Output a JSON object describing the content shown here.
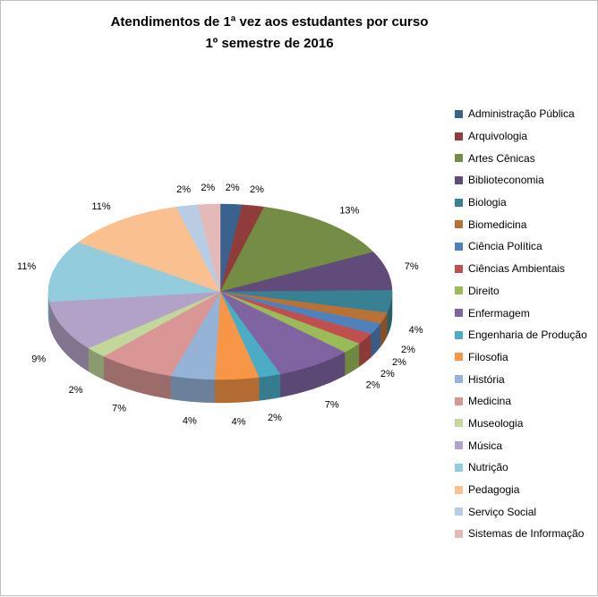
{
  "title": {
    "line1": "Atendimentos de 1ª vez aos estudantes por curso",
    "line2": "1º semestre de 2016"
  },
  "chart_data": {
    "type": "pie",
    "style": "3d-pie",
    "title": "Atendimentos de 1ª vez aos estudantes por curso",
    "subtitle": "1º semestre de 2016",
    "legend_position": "right",
    "label_format": "percent",
    "slices": [
      {
        "label": "Administração Pública",
        "value": 2,
        "display": "2%",
        "color": "#3B618E"
      },
      {
        "label": "Arquivologia",
        "value": 2,
        "display": "2%",
        "color": "#903C3A"
      },
      {
        "label": "Artes Cênicas",
        "value": 13,
        "display": "13%",
        "color": "#748C43"
      },
      {
        "label": "Biblioteconomia",
        "value": 7,
        "display": "7%",
        "color": "#604B7A"
      },
      {
        "label": "Biologia",
        "value": 4,
        "display": "4%",
        "color": "#388195"
      },
      {
        "label": "Biomedicina",
        "value": 2,
        "display": "2%",
        "color": "#B97135"
      },
      {
        "label": "Ciência Política",
        "value": 2,
        "display": "2%",
        "color": "#4F81BD"
      },
      {
        "label": "Ciências Ambientais",
        "value": 2,
        "display": "2%",
        "color": "#C0504D"
      },
      {
        "label": "Direito",
        "value": 2,
        "display": "2%",
        "color": "#9BBB59"
      },
      {
        "label": "Enfermagem",
        "value": 7,
        "display": "7%",
        "color": "#8064A2"
      },
      {
        "label": "Engenharia de Produção",
        "value": 2,
        "display": "2%",
        "color": "#4BACC6"
      },
      {
        "label": "Filosofia",
        "value": 4,
        "display": "4%",
        "color": "#F79646"
      },
      {
        "label": "História",
        "value": 4,
        "display": "4%",
        "color": "#95B3D7"
      },
      {
        "label": "Medicina",
        "value": 7,
        "display": "7%",
        "color": "#D99695"
      },
      {
        "label": "Museologia",
        "value": 2,
        "display": "2%",
        "color": "#C3D69B"
      },
      {
        "label": "Música",
        "value": 9,
        "display": "9%",
        "color": "#B3A2C7"
      },
      {
        "label": "Nutrição",
        "value": 11,
        "display": "11%",
        "color": "#93CDDD"
      },
      {
        "label": "Pedagogia",
        "value": 11,
        "display": "11%",
        "color": "#FAC090"
      },
      {
        "label": "Serviço Social",
        "value": 2,
        "display": "2%",
        "color": "#B8CCE4"
      },
      {
        "label": "Sistemas de Informação",
        "value": 2,
        "display": "2%",
        "color": "#E5B9B7"
      }
    ]
  }
}
